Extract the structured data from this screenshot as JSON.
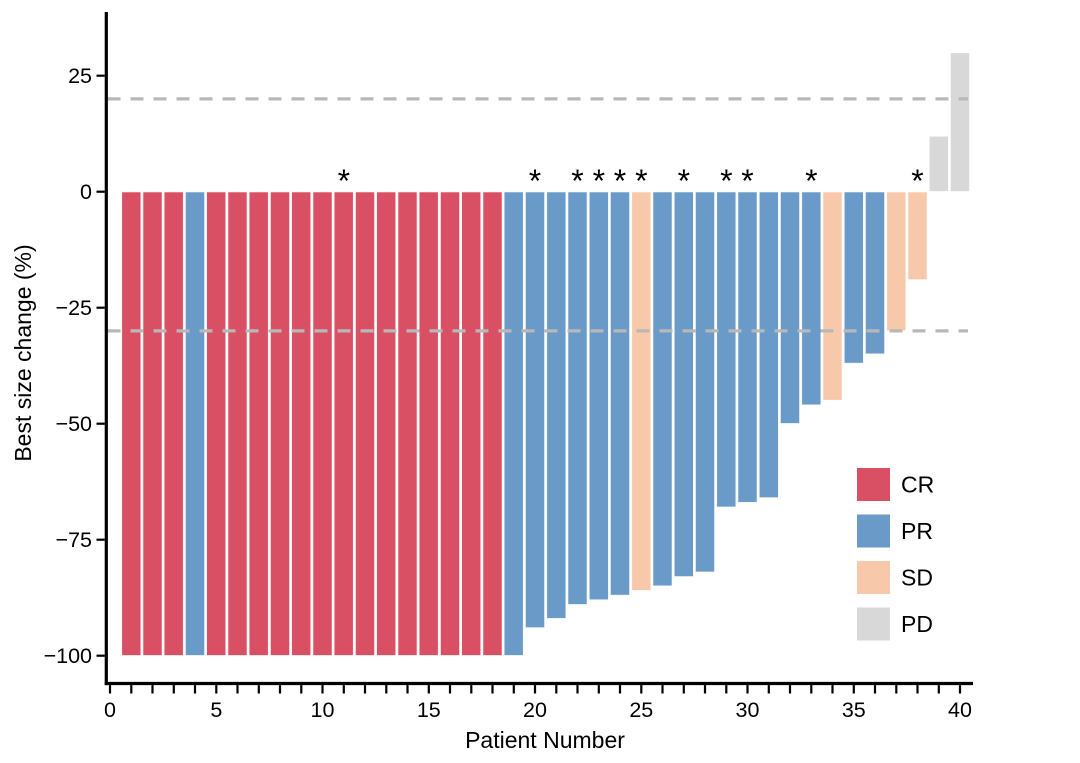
{
  "chart_data": {
    "type": "bar",
    "subtype": "waterfall-best-response",
    "title": "",
    "xlabel": "Patient Number",
    "ylabel": "Best size change (%)",
    "xlim": [
      0,
      40
    ],
    "ylim": [
      -107,
      38
    ],
    "x_major_ticks": [
      0,
      5,
      10,
      15,
      20,
      25,
      30,
      35,
      40
    ],
    "x_minor_tick_every": 1,
    "y_ticks": [
      25,
      0,
      -25,
      -50,
      -75,
      -100
    ],
    "y_tick_labels": [
      "25",
      "0",
      "−25",
      "−50",
      "−75",
      "−100"
    ],
    "grid": "off",
    "reference_lines": [
      20,
      -30
    ],
    "reference_line_color": "#b8b8b8",
    "axis_color": "#000000",
    "star_symbol": "*",
    "legend_position": "inside-right",
    "groups": [
      {
        "id": "CR",
        "label": "CR",
        "color": "#d94f63"
      },
      {
        "id": "PR",
        "label": "PR",
        "color": "#6a9ac7"
      },
      {
        "id": "SD",
        "label": "SD",
        "color": "#f8c8ab"
      },
      {
        "id": "PD",
        "label": "PD",
        "color": "#d8d8d8"
      }
    ],
    "patients": [
      {
        "n": 1,
        "value": -100,
        "group": "CR",
        "star": false
      },
      {
        "n": 2,
        "value": -100,
        "group": "CR",
        "star": false
      },
      {
        "n": 3,
        "value": -100,
        "group": "CR",
        "star": false
      },
      {
        "n": 4,
        "value": -100,
        "group": "PR",
        "star": false
      },
      {
        "n": 5,
        "value": -100,
        "group": "CR",
        "star": false
      },
      {
        "n": 6,
        "value": -100,
        "group": "CR",
        "star": false
      },
      {
        "n": 7,
        "value": -100,
        "group": "CR",
        "star": false
      },
      {
        "n": 8,
        "value": -100,
        "group": "CR",
        "star": false
      },
      {
        "n": 9,
        "value": -100,
        "group": "CR",
        "star": false
      },
      {
        "n": 10,
        "value": -100,
        "group": "CR",
        "star": false
      },
      {
        "n": 11,
        "value": -100,
        "group": "CR",
        "star": true
      },
      {
        "n": 12,
        "value": -100,
        "group": "CR",
        "star": false
      },
      {
        "n": 13,
        "value": -100,
        "group": "CR",
        "star": false
      },
      {
        "n": 14,
        "value": -100,
        "group": "CR",
        "star": false
      },
      {
        "n": 15,
        "value": -100,
        "group": "CR",
        "star": false
      },
      {
        "n": 16,
        "value": -100,
        "group": "CR",
        "star": false
      },
      {
        "n": 17,
        "value": -100,
        "group": "CR",
        "star": false
      },
      {
        "n": 18,
        "value": -100,
        "group": "CR",
        "star": false
      },
      {
        "n": 19,
        "value": -100,
        "group": "PR",
        "star": false
      },
      {
        "n": 20,
        "value": -94,
        "group": "PR",
        "star": true
      },
      {
        "n": 21,
        "value": -92,
        "group": "PR",
        "star": false
      },
      {
        "n": 22,
        "value": -89,
        "group": "PR",
        "star": true
      },
      {
        "n": 23,
        "value": -88,
        "group": "PR",
        "star": true
      },
      {
        "n": 24,
        "value": -87,
        "group": "PR",
        "star": true
      },
      {
        "n": 25,
        "value": -86,
        "group": "SD",
        "star": true
      },
      {
        "n": 26,
        "value": -85,
        "group": "PR",
        "star": false
      },
      {
        "n": 27,
        "value": -83,
        "group": "PR",
        "star": true
      },
      {
        "n": 28,
        "value": -82,
        "group": "PR",
        "star": false
      },
      {
        "n": 29,
        "value": -68,
        "group": "PR",
        "star": true
      },
      {
        "n": 30,
        "value": -67,
        "group": "PR",
        "star": true
      },
      {
        "n": 31,
        "value": -66,
        "group": "PR",
        "star": false
      },
      {
        "n": 32,
        "value": -50,
        "group": "PR",
        "star": false
      },
      {
        "n": 33,
        "value": -46,
        "group": "PR",
        "star": true
      },
      {
        "n": 34,
        "value": -45,
        "group": "SD",
        "star": false
      },
      {
        "n": 35,
        "value": -37,
        "group": "PR",
        "star": false
      },
      {
        "n": 36,
        "value": -35,
        "group": "PR",
        "star": false
      },
      {
        "n": 37,
        "value": -30,
        "group": "SD",
        "star": false
      },
      {
        "n": 38,
        "value": -19,
        "group": "SD",
        "star": true
      },
      {
        "n": 39,
        "value": 12,
        "group": "PD",
        "star": false
      },
      {
        "n": 40,
        "value": 30,
        "group": "PD",
        "star": false
      }
    ]
  }
}
